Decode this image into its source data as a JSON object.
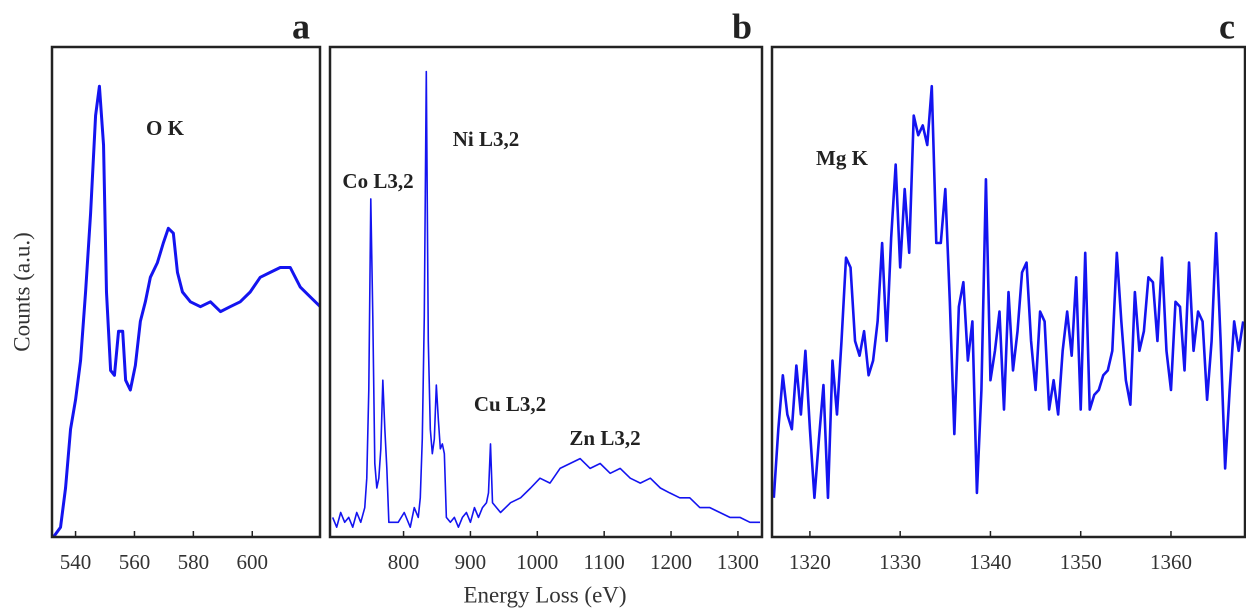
{
  "chart_data": [
    {
      "type": "line",
      "title": "a",
      "ylabel": "Counts (a.u.)",
      "annotations": [
        "O K"
      ],
      "color": "#1414f0",
      "xlim": [
        532,
        623
      ],
      "ylim": [
        0,
        100
      ],
      "xticks": [
        540,
        560,
        580,
        600
      ],
      "x": [
        532.5,
        534.9,
        536.6,
        538.3,
        540,
        541.7,
        543.4,
        545.1,
        546.8,
        548.1,
        549.5,
        550.5,
        551.9,
        553.2,
        554.6,
        556,
        557,
        558.6,
        560.3,
        562,
        563.7,
        565.4,
        567.8,
        569.8,
        571.5,
        573.2,
        574.6,
        576.3,
        579,
        582.4,
        585.8,
        589.2,
        592.5,
        595.9,
        599.3,
        602.7,
        606.1,
        609.5,
        612.9,
        616.3,
        619.7,
        623.1
      ],
      "values": [
        0,
        2,
        10,
        22,
        28,
        36,
        50,
        66,
        86,
        92,
        80,
        50,
        34,
        33,
        42,
        42,
        32,
        30,
        35,
        44,
        48,
        53,
        56,
        60,
        63,
        62,
        54,
        50,
        48,
        47,
        48,
        46,
        47,
        48,
        50,
        53,
        54,
        55,
        55,
        51,
        49,
        47
      ]
    },
    {
      "type": "line",
      "title": "b",
      "xlabel": "Energy Loss (eV)",
      "annotations": [
        "Co L3,2",
        "Ni L3,2",
        "Cu L3,2",
        "Zn L3,2"
      ],
      "color": "#1414f0",
      "xlim": [
        690,
        1336
      ],
      "ylim": [
        0,
        100
      ],
      "xticks": [
        800,
        900,
        1000,
        1100,
        1200,
        1300
      ],
      "x": [
        694,
        700,
        706,
        712,
        718,
        724,
        730,
        736,
        742,
        745,
        748,
        751,
        754,
        757,
        760,
        763,
        766,
        769,
        772,
        775,
        778,
        792,
        801,
        810,
        816,
        822,
        825,
        828,
        831,
        834,
        837,
        840,
        843,
        846,
        849,
        852,
        855,
        858,
        861,
        864,
        870,
        876,
        882,
        888,
        894,
        900,
        906,
        912,
        918,
        924,
        927,
        930,
        933,
        939,
        945,
        960,
        975,
        990,
        1004,
        1019,
        1034,
        1049,
        1064,
        1079,
        1094,
        1109,
        1124,
        1139,
        1154,
        1169,
        1184,
        1198,
        1213,
        1228,
        1243,
        1258,
        1273,
        1288,
        1303,
        1318,
        1333
      ],
      "values": [
        4,
        2,
        5,
        3,
        4,
        2,
        5,
        3,
        6,
        12,
        30,
        69,
        45,
        15,
        10,
        12,
        18,
        32,
        22,
        14,
        3,
        3,
        5,
        2,
        6,
        4,
        8,
        20,
        45,
        95,
        40,
        22,
        17,
        20,
        31,
        24,
        18,
        19,
        17,
        4,
        3,
        4,
        2,
        4,
        5,
        3,
        6,
        4,
        6,
        7,
        9,
        19,
        7,
        6,
        5,
        7,
        8,
        10,
        12,
        11,
        14,
        15,
        16,
        14,
        15,
        13,
        14,
        12,
        11,
        12,
        10,
        9,
        8,
        8,
        6,
        6,
        5,
        4,
        4,
        3,
        3
      ]
    },
    {
      "type": "line",
      "title": "c",
      "annotations": [
        "Mg K"
      ],
      "color": "#1414f0",
      "xlim": [
        1315.8,
        1368.2
      ],
      "ylim": [
        0,
        100
      ],
      "xticks": [
        1320,
        1330,
        1340,
        1350,
        1360
      ],
      "x": [
        1316,
        1316.5,
        1317,
        1317.5,
        1318,
        1318.5,
        1319,
        1319.5,
        1320,
        1320.5,
        1321,
        1321.5,
        1322,
        1322.5,
        1323,
        1323.5,
        1324,
        1324.5,
        1325,
        1325.5,
        1326,
        1326.5,
        1327,
        1327.5,
        1328,
        1328.5,
        1329,
        1329.5,
        1330,
        1330.5,
        1331,
        1331.5,
        1332,
        1332.5,
        1333,
        1333.5,
        1334,
        1334.5,
        1335,
        1335.5,
        1336,
        1336.5,
        1337,
        1337.5,
        1338,
        1338.5,
        1339,
        1339.5,
        1340,
        1340.5,
        1341,
        1341.5,
        1342,
        1342.5,
        1343,
        1343.5,
        1344,
        1344.5,
        1345,
        1345.5,
        1346,
        1346.5,
        1347,
        1347.5,
        1348,
        1348.5,
        1349,
        1349.5,
        1350,
        1350.5,
        1351,
        1351.5,
        1352,
        1352.5,
        1353,
        1353.5,
        1354,
        1354.5,
        1355,
        1355.5,
        1356,
        1356.5,
        1357,
        1357.5,
        1358,
        1358.5,
        1359,
        1359.5,
        1360,
        1360.5,
        1361,
        1361.5,
        1362,
        1362.5,
        1363,
        1363.5,
        1364,
        1364.5,
        1365,
        1365.5,
        1366,
        1366.5,
        1367,
        1367.5,
        1368
      ],
      "values": [
        8,
        22,
        33,
        25,
        22,
        35,
        25,
        38,
        22,
        8,
        20,
        31,
        8,
        36,
        25,
        40,
        57,
        55,
        40,
        37,
        42,
        33,
        36,
        44,
        60,
        40,
        61,
        76,
        55,
        71,
        58,
        86,
        82,
        84,
        80,
        92,
        60,
        60,
        71,
        48,
        21,
        47,
        52,
        36,
        44,
        9,
        30,
        73,
        32,
        38,
        46,
        26,
        50,
        34,
        42,
        54,
        56,
        40,
        30,
        46,
        44,
        26,
        32,
        25,
        38,
        46,
        37,
        53,
        26,
        58,
        26,
        29,
        30,
        33,
        34,
        38,
        58,
        44,
        32,
        27,
        50,
        38,
        42,
        53,
        52,
        40,
        57,
        38,
        30,
        48,
        47,
        34,
        56,
        38,
        46,
        44,
        28,
        40,
        62,
        40,
        14,
        30,
        44,
        38,
        44
      ]
    }
  ]
}
